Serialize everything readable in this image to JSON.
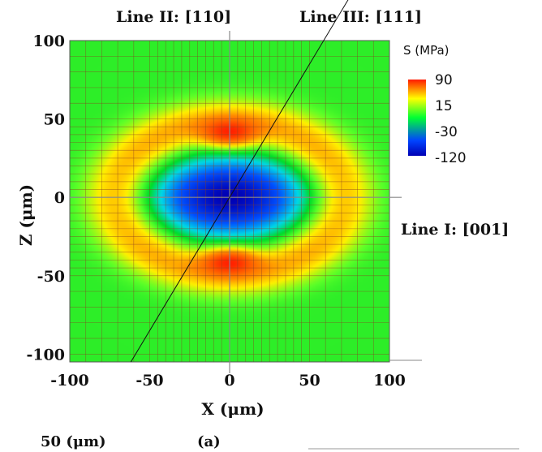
{
  "chart_data": {
    "type": "heatmap",
    "title": "",
    "xlabel": "X (μm)",
    "ylabel": "Z (μm)",
    "xlim": [
      -100,
      100
    ],
    "ylim": [
      -105,
      100
    ],
    "x_ticks": [
      "-100",
      "-50",
      "0",
      "50",
      "100"
    ],
    "y_ticks": [
      "100",
      "50",
      "0",
      "-50",
      "-100"
    ],
    "x_tick_values": [
      -100,
      -50,
      0,
      50,
      100
    ],
    "y_tick_values": [
      100,
      50,
      0,
      -50,
      -100
    ],
    "grid": true,
    "colorbar": {
      "title": "S (MPa)",
      "labels": [
        "90",
        "15",
        "-30",
        "-120"
      ],
      "values": [
        90,
        15,
        -30,
        -120
      ],
      "colors": [
        "#ff1a00",
        "#ffff00",
        "#00ff33",
        "#0044ff",
        "#0000b4"
      ]
    },
    "field": {
      "background_MPa": -20,
      "center_MPa": -120,
      "peak_MPa": 90,
      "peak_locations": [
        [
          0,
          40
        ],
        [
          0,
          -40
        ]
      ]
    },
    "annotations": [
      {
        "label": "Line I: [001]",
        "direction": "horizontal",
        "through": [
          0,
          0
        ]
      },
      {
        "label": "Line II: [110]",
        "direction": "vertical",
        "through": [
          0,
          0
        ]
      },
      {
        "label": "Line III: [111]",
        "direction": "diagonal",
        "through": [
          0,
          0
        ],
        "slope": 1.7
      }
    ],
    "bottom_labels": [
      "50 (μm)",
      "(a)"
    ]
  }
}
